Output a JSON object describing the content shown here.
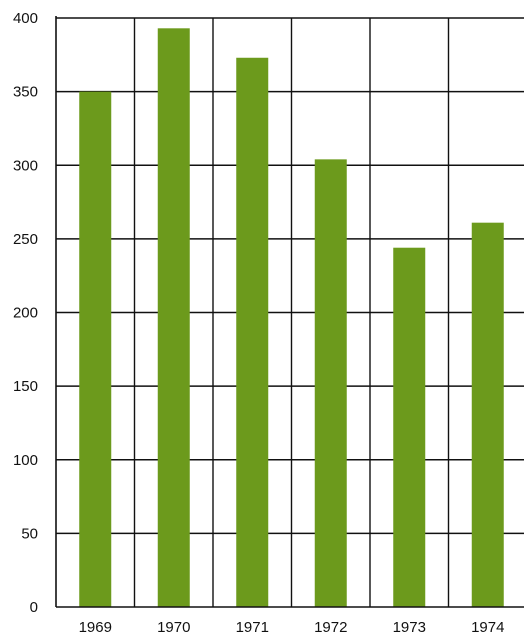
{
  "chart_data": {
    "type": "bar",
    "categories": [
      "1969",
      "1970",
      "1971",
      "1972",
      "1973",
      "1974"
    ],
    "values": [
      350,
      393,
      373,
      304,
      244,
      261
    ],
    "ylim": [
      0,
      400
    ],
    "yticks": [
      0,
      50,
      100,
      150,
      200,
      250,
      300,
      350,
      400
    ],
    "grid": true,
    "bar_color": "#6c9a1c",
    "grid_color": "#111111"
  }
}
